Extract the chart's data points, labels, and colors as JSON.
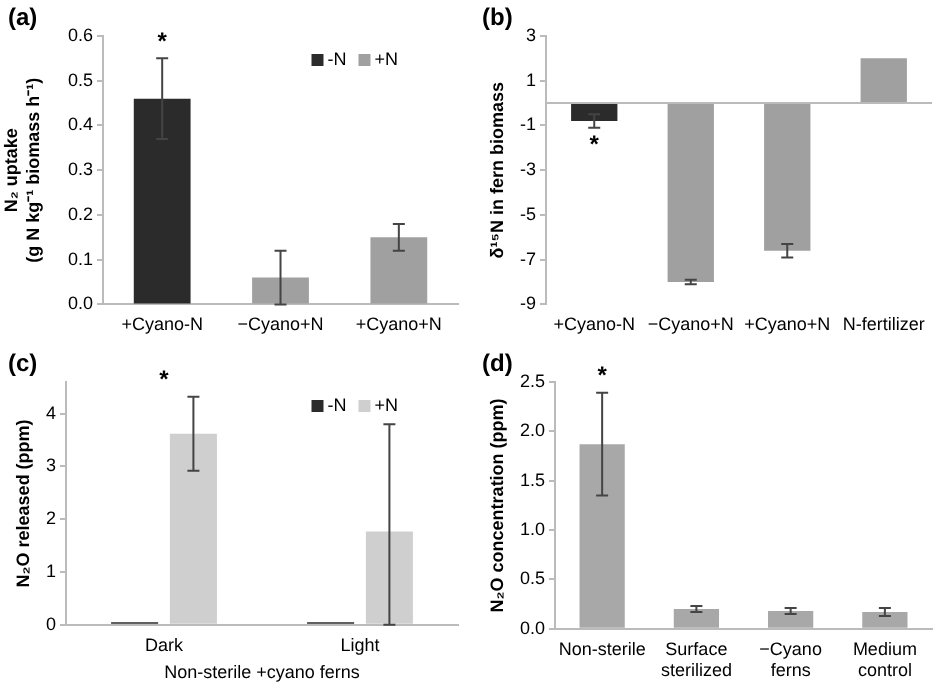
{
  "chart_data": [
    {
      "type": "bar",
      "title": "(a)",
      "ylabel": "N₂ uptake\n(g N kg⁻¹ biomass h⁻¹)",
      "categories": [
        "+Cyano-N",
        "−Cyano+N",
        "+Cyano+N"
      ],
      "series": [
        {
          "name": "-N",
          "color": "#2b2b2b",
          "values": [
            0.46,
            null,
            null
          ],
          "errors": [
            0.09,
            null,
            null
          ]
        },
        {
          "name": "+N",
          "color": "#a0a0a0",
          "values": [
            null,
            0.06,
            0.15
          ],
          "errors": [
            null,
            0.06,
            0.03
          ]
        }
      ],
      "stacked": true,
      "ylim": [
        0,
        0.6
      ],
      "yticks": [
        {
          "value": 0,
          "label": "0.0"
        },
        0.1,
        0.2,
        0.3,
        0.4,
        0.5,
        0.6
      ],
      "legend": "top right",
      "annotations": [
        {
          "text": "*",
          "x": "+Cyano-N",
          "y": 0.46
        }
      ]
    },
    {
      "type": "bar",
      "title": "(b)",
      "ylabel": "δ¹⁵N in fern biomass",
      "categories": [
        "+Cyano-N",
        "−Cyano+N",
        "+Cyano+N",
        "N-fertilizer"
      ],
      "series": [
        {
          "colors": [
            "#2b2b2b",
            "#a0a0a0",
            "#a0a0a0",
            "#a0a0a0"
          ],
          "values": [
            -0.8,
            -8.0,
            -6.6,
            2.0
          ],
          "errors": [
            0.3,
            0.1,
            0.3,
            null
          ]
        }
      ],
      "ylim": [
        -9,
        3
      ],
      "yticks": [
        3,
        1,
        -1,
        -3,
        -5,
        -7,
        -9
      ],
      "annotations": [
        {
          "text": "*",
          "x": "+Cyano-N",
          "y": -0.8
        }
      ]
    },
    {
      "type": "bar",
      "title": "(c)",
      "ylabel": "N₂O released (ppm)",
      "xlabel": "Non-sterile +cyano ferns",
      "categories": [
        "Dark",
        "Light"
      ],
      "series": [
        {
          "name": "-N",
          "color": "#2b2b2b",
          "values": [
            0.05,
            0.05
          ]
        },
        {
          "name": "+N",
          "color": "#cfcfcf",
          "values": [
            3.62,
            1.77
          ],
          "errors": [
            0.7,
            [
              0,
              3.8
            ]
          ]
        }
      ],
      "ylim": [
        0,
        4.6
      ],
      "yticks": [
        0,
        1,
        2,
        3,
        4
      ],
      "legend": "top right",
      "annotations": [
        {
          "text": "*",
          "x": "Dark",
          "y": 3.62
        }
      ]
    },
    {
      "type": "bar",
      "title": "(d)",
      "ylabel": "N₂O concentration (ppm)",
      "categories": [
        "Non-sterile",
        "Surface sterilized",
        "−Cyano ferns",
        "Medium control"
      ],
      "series": [
        {
          "color": "#a8a8a8",
          "values": [
            1.87,
            0.2,
            0.18,
            0.17
          ],
          "errors": [
            0.52,
            0.03,
            0.03,
            0.04
          ]
        }
      ],
      "ylim": [
        0,
        2.5
      ],
      "yticks": [
        {
          "value": 0,
          "label": "0.0"
        },
        {
          "value": 0.5,
          "label": "0.5"
        },
        {
          "value": 1,
          "label": "1.0"
        },
        {
          "value": 1.5,
          "label": "1.5"
        },
        {
          "value": 2,
          "label": "2.0"
        },
        {
          "value": 2.5,
          "label": "2.5"
        }
      ],
      "annotations": [
        {
          "text": "*",
          "x": "Non-sterile",
          "y": 1.87
        }
      ]
    }
  ]
}
